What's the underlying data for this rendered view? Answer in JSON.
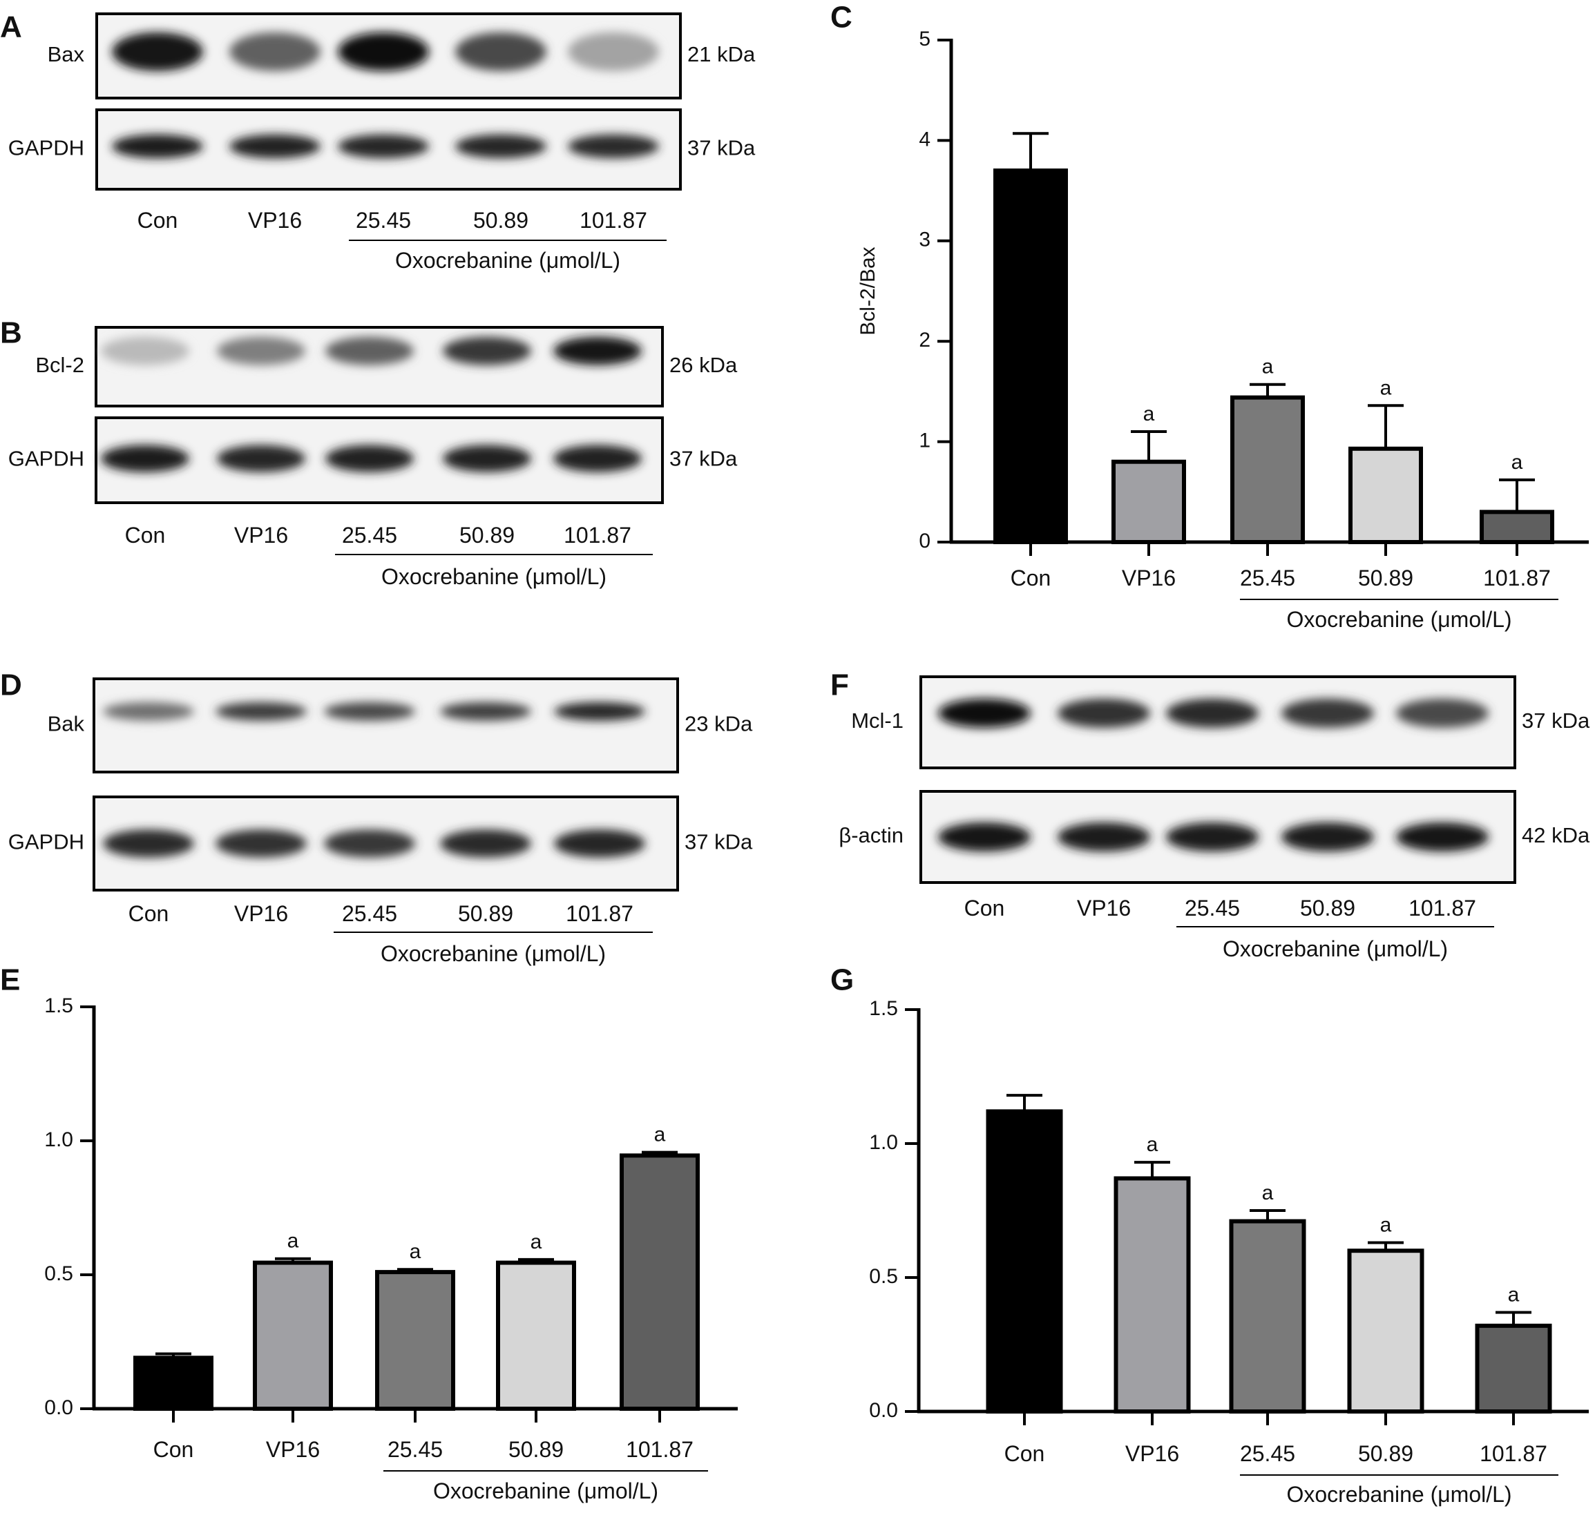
{
  "panels": {
    "A": {
      "letter": "A",
      "rows": [
        {
          "protein": "Bax",
          "kda": "21 kDa"
        },
        {
          "protein": "GAPDH",
          "kda": "37 kDa"
        }
      ],
      "lanes": [
        "Con",
        "VP16",
        "25.45",
        "50.89",
        "101.87"
      ],
      "group_label": "Oxocrebanine (μmol/L)"
    },
    "B": {
      "letter": "B",
      "rows": [
        {
          "protein": "Bcl-2",
          "kda": "26 kDa"
        },
        {
          "protein": "GAPDH",
          "kda": "37 kDa"
        }
      ],
      "lanes": [
        "Con",
        "VP16",
        "25.45",
        "50.89",
        "101.87"
      ],
      "group_label": "Oxocrebanine (μmol/L)"
    },
    "D": {
      "letter": "D",
      "rows": [
        {
          "protein": "Bak",
          "kda": "23 kDa"
        },
        {
          "protein": "GAPDH",
          "kda": "37 kDa"
        }
      ],
      "lanes": [
        "Con",
        "VP16",
        "25.45",
        "50.89",
        "101.87"
      ],
      "group_label": "Oxocrebanine (μmol/L)"
    },
    "F": {
      "letter": "F",
      "rows": [
        {
          "protein": "Mcl-1",
          "kda": "37 kDa"
        },
        {
          "protein": "β-actin",
          "kda": "42 kDa"
        }
      ],
      "lanes": [
        "Con",
        "VP16",
        "25.45",
        "50.89",
        "101.87"
      ],
      "group_label": "Oxocrebanine (μmol/L)"
    }
  },
  "chart_data": [
    {
      "panel": "C",
      "type": "bar",
      "title": "",
      "ylabel": "Bcl-2/Bax",
      "categories": [
        "Con",
        "VP16",
        "25.45",
        "50.89",
        "101.87"
      ],
      "values": [
        3.7,
        0.8,
        1.44,
        0.93,
        0.3
      ],
      "errors": [
        0.37,
        0.3,
        0.13,
        0.43,
        0.32
      ],
      "significance": [
        "",
        "a",
        "a",
        "a",
        "a"
      ],
      "colors": [
        "#000000",
        "#a0a0a4",
        "#7a7a7a",
        "#d6d6d6",
        "#5f5f5f"
      ],
      "ylim": [
        0,
        5
      ],
      "yticks": [
        "0",
        "1",
        "2",
        "3",
        "4",
        "5"
      ],
      "group_label": "Oxocrebanine (μmol/L)"
    },
    {
      "panel": "E",
      "type": "bar",
      "title": "",
      "ylabel": "",
      "categories": [
        "Con",
        "VP16",
        "25.45",
        "50.89",
        "101.87"
      ],
      "values": [
        0.19,
        0.545,
        0.51,
        0.545,
        0.945
      ],
      "errors": [
        0.015,
        0.015,
        0.01,
        0.012,
        0.012
      ],
      "significance": [
        "",
        "a",
        "a",
        "a",
        "a"
      ],
      "colors": [
        "#000000",
        "#a0a0a4",
        "#7a7a7a",
        "#d6d6d6",
        "#5f5f5f"
      ],
      "ylim": [
        0,
        1.5
      ],
      "yticks": [
        "0.0",
        "0.5",
        "1.0",
        "1.5"
      ],
      "group_label": "Oxocrebanine (μmol/L)"
    },
    {
      "panel": "G",
      "type": "bar",
      "title": "",
      "ylabel": "",
      "categories": [
        "Con",
        "VP16",
        "25.45",
        "50.89",
        "101.87"
      ],
      "values": [
        1.12,
        0.87,
        0.71,
        0.6,
        0.32
      ],
      "errors": [
        0.06,
        0.06,
        0.04,
        0.03,
        0.05
      ],
      "significance": [
        "",
        "a",
        "a",
        "a",
        "a"
      ],
      "colors": [
        "#000000",
        "#a0a0a4",
        "#7a7a7a",
        "#d6d6d6",
        "#5f5f5f"
      ],
      "ylim": [
        0,
        1.5
      ],
      "yticks": [
        "0.0",
        "0.5",
        "1.0",
        "1.5"
      ],
      "group_label": "Oxocrebanine (μmol/L)"
    }
  ]
}
